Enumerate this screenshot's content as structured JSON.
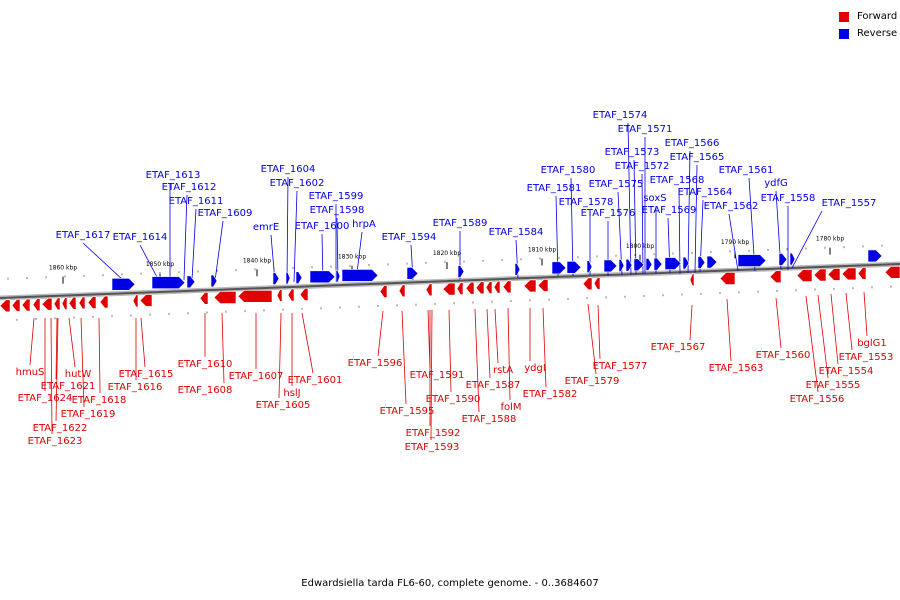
{
  "legend": {
    "forward_label": "Forward",
    "reverse_label": "Reverse",
    "forward_color": "#e00000",
    "reverse_color": "#0000e6"
  },
  "caption": "Edwardsiella tarda FL6-60, complete genome. - 0..3684607",
  "scale_ticks": [
    "1860 kbp",
    "1850 kbp",
    "1840 kbp",
    "1830 kbp",
    "1820 kbp",
    "1810 kbp",
    "1800 kbp",
    "1790 kbp",
    "1780 kbp"
  ],
  "forward_labels": [
    "ETAF_1617",
    "ETAF_1614",
    "ETAF_1613",
    "ETAF_1612",
    "ETAF_1611",
    "ETAF_1609",
    "emrE",
    "ETAF_1604",
    "ETAF_1602",
    "ETAF_1600",
    "ETAF_1599",
    "ETAF_1598",
    "hrpA",
    "ETAF_1594",
    "ETAF_1589",
    "ETAF_1584",
    "ETAF_1581",
    "ETAF_1580",
    "ETAF_1578",
    "ETAF_1576",
    "ETAF_1575",
    "ETAF_1574",
    "ETAF_1573",
    "ETAF_1572",
    "ETAF_1571",
    "soxS",
    "ETAF_1569",
    "ETAF_1568",
    "ETAF_1566",
    "ETAF_1565",
    "ETAF_1564",
    "ETAF_1562",
    "ETAF_1561",
    "ydfG",
    "ETAF_1558",
    "ETAF_1557"
  ],
  "reverse_labels": [
    "hmuS",
    "ETAF_1624",
    "ETAF_1621",
    "ETAF_1622",
    "ETAF_1623",
    "hutW",
    "ETAF_1618",
    "ETAF_1619",
    "ETAF_1615",
    "ETAF_1616",
    "ETAF_1610",
    "ETAF_1608",
    "ETAF_1607",
    "ETAF_1605",
    "hslJ",
    "ETAF_1601",
    "ETAF_1596",
    "ETAF_1595",
    "ETAF_1591",
    "ETAF_1590",
    "ETAF_1592",
    "ETAF_1593",
    "ETAF_1587",
    "ETAF_1588",
    "rstA",
    "folM",
    "ydgI",
    "ETAF_1582",
    "ETAF_1579",
    "ETAF_1577",
    "ETAF_1567",
    "ETAF_1563",
    "ETAF_1560",
    "ETAF_1556",
    "ETAF_1555",
    "ETAF_1554",
    "ETAF_1553",
    "bglG1"
  ]
}
